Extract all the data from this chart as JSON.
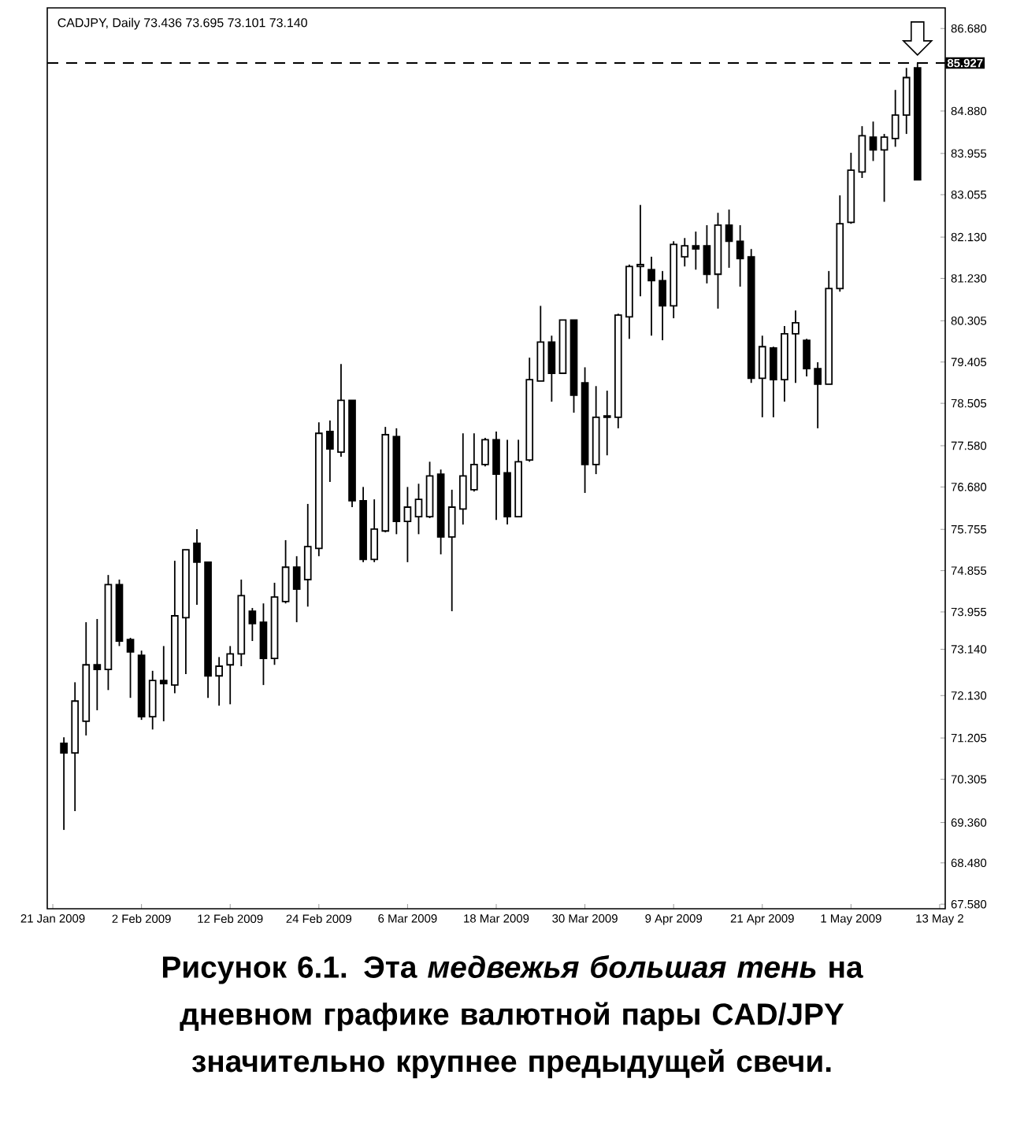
{
  "chart_data": {
    "type": "candlestick",
    "title": "CADJPY, Daily 73.436 73.695 73.101 73.140",
    "annotations": [
      "Рисунок 6.1. Эта *медвежья большая тень* на дневном графике валютной пары CAD/JPY значительно крупнее предыдущей свечи."
    ],
    "categories": [
      "21 Jan 2009",
      null,
      null,
      null,
      null,
      null,
      null,
      null,
      "2 Feb 2009",
      null,
      null,
      null,
      null,
      null,
      null,
      null,
      "12 Feb 2009",
      null,
      null,
      null,
      null,
      null,
      null,
      null,
      "24 Feb 2009",
      null,
      null,
      null,
      null,
      null,
      null,
      null,
      "6 Mar 2009",
      null,
      null,
      null,
      null,
      null,
      null,
      null,
      "18 Mar 2009",
      null,
      null,
      null,
      null,
      null,
      null,
      null,
      "30 Mar 2009",
      null,
      null,
      null,
      null,
      null,
      null,
      null,
      "9 Apr 2009",
      null,
      null,
      null,
      null,
      null,
      null,
      null,
      "21 Apr 2009",
      null,
      null,
      null,
      null,
      null,
      null,
      null,
      "1 May 2009",
      null,
      null,
      null,
      null,
      null,
      null,
      null,
      "13 May 2"
    ],
    "ohlc": [
      null,
      [
        71.09,
        71.22,
        69.2,
        70.88
      ],
      [
        70.88,
        72.42,
        69.61,
        72.01
      ],
      [
        71.57,
        73.73,
        71.26,
        72.8
      ],
      [
        72.8,
        73.8,
        71.81,
        72.7
      ],
      [
        72.7,
        74.76,
        72.25,
        74.55
      ],
      [
        74.55,
        74.66,
        73.21,
        73.32
      ],
      [
        73.35,
        73.39,
        72.08,
        73.08
      ],
      [
        73.01,
        73.11,
        71.6,
        71.67
      ],
      [
        71.67,
        72.67,
        71.39,
        72.46
      ],
      [
        72.46,
        73.21,
        71.57,
        72.39
      ],
      [
        72.36,
        75.07,
        72.18,
        73.87
      ],
      [
        73.83,
        75.31,
        72.6,
        75.31
      ],
      [
        75.45,
        75.76,
        74.11,
        75.04
      ],
      [
        75.04,
        75.04,
        72.08,
        72.56
      ],
      [
        72.56,
        72.97,
        71.91,
        72.77
      ],
      [
        72.8,
        73.21,
        71.94,
        73.04
      ],
      [
        73.04,
        74.66,
        72.77,
        74.31
      ],
      [
        73.97,
        74.04,
        73.32,
        73.7
      ],
      [
        73.73,
        74.14,
        72.36,
        72.94
      ],
      [
        72.94,
        74.59,
        72.8,
        74.28
      ],
      [
        74.18,
        75.52,
        74.14,
        74.93
      ],
      [
        74.93,
        75.17,
        73.73,
        74.45
      ],
      [
        74.66,
        76.31,
        74.07,
        75.38
      ],
      [
        75.34,
        78.09,
        75.17,
        77.85
      ],
      [
        77.89,
        78.13,
        76.79,
        77.51
      ],
      [
        77.44,
        79.36,
        77.34,
        78.57
      ],
      [
        78.57,
        78.57,
        76.24,
        76.38
      ],
      [
        76.38,
        76.68,
        75.04,
        75.1
      ],
      [
        75.1,
        76.41,
        75.04,
        75.76
      ],
      [
        75.72,
        77.99,
        75.69,
        77.82
      ],
      [
        77.78,
        77.96,
        75.65,
        75.93
      ],
      [
        75.93,
        76.68,
        75.04,
        76.24
      ],
      [
        76.03,
        76.75,
        75.65,
        76.41
      ],
      [
        76.03,
        77.23,
        76.0,
        76.92
      ],
      [
        76.96,
        77.06,
        75.21,
        75.59
      ],
      [
        75.59,
        76.62,
        73.97,
        76.24
      ],
      [
        76.2,
        77.85,
        75.86,
        76.92
      ],
      [
        76.62,
        77.85,
        76.58,
        77.17
      ],
      [
        77.17,
        77.75,
        77.13,
        77.71
      ],
      [
        77.71,
        77.89,
        75.96,
        76.96
      ],
      [
        76.99,
        77.71,
        75.86,
        76.03
      ],
      [
        76.03,
        77.71,
        76.03,
        77.23
      ],
      [
        77.27,
        79.5,
        77.23,
        79.02
      ],
      [
        78.99,
        80.63,
        78.99,
        79.84
      ],
      [
        79.84,
        79.98,
        78.54,
        79.16
      ],
      [
        79.16,
        80.32,
        79.16,
        80.32
      ],
      [
        80.32,
        80.32,
        78.3,
        78.68
      ],
      [
        78.95,
        79.29,
        76.55,
        77.17
      ],
      [
        77.17,
        78.88,
        76.96,
        78.2
      ],
      [
        78.2,
        78.78,
        77.37,
        78.23
      ],
      [
        78.2,
        80.46,
        77.96,
        80.43
      ],
      [
        80.39,
        81.53,
        79.91,
        81.49
      ],
      [
        81.49,
        82.83,
        80.84,
        81.53
      ],
      [
        81.42,
        81.7,
        79.98,
        81.18
      ],
      [
        81.18,
        81.39,
        79.88,
        80.63
      ],
      [
        80.63,
        82.04,
        80.36,
        81.97
      ],
      [
        81.7,
        82.11,
        81.49,
        81.94
      ],
      [
        81.94,
        82.25,
        81.42,
        81.87
      ],
      [
        81.94,
        82.39,
        81.12,
        81.32
      ],
      [
        81.32,
        82.66,
        80.57,
        82.39
      ],
      [
        82.39,
        82.73,
        81.46,
        82.04
      ],
      [
        82.04,
        82.39,
        81.05,
        81.66
      ],
      [
        81.7,
        81.87,
        78.95,
        79.05
      ],
      [
        79.05,
        79.98,
        78.2,
        79.74
      ],
      [
        79.71,
        79.74,
        78.2,
        79.02
      ],
      [
        79.02,
        80.19,
        78.54,
        80.02
      ],
      [
        80.02,
        80.53,
        78.95,
        80.26
      ],
      [
        79.88,
        79.91,
        79.09,
        79.26
      ],
      [
        79.26,
        79.4,
        77.96,
        78.92
      ],
      [
        78.92,
        81.39,
        78.92,
        81.01
      ],
      [
        81.01,
        83.04,
        80.94,
        82.42
      ],
      [
        82.45,
        83.97,
        82.42,
        83.59
      ],
      [
        83.55,
        84.55,
        83.42,
        84.34
      ],
      [
        84.31,
        84.65,
        83.79,
        84.03
      ],
      [
        84.03,
        84.38,
        82.9,
        84.31
      ],
      [
        84.28,
        85.34,
        84.1,
        84.79
      ],
      [
        84.79,
        85.82,
        84.38,
        85.61
      ],
      [
        85.82,
        85.93,
        83.38,
        83.38
      ],
      null,
      null
    ],
    "color": "#000000",
    "ylim": [
      67.48,
      87.13
    ],
    "yticks": [
      {
        "value": 86.68,
        "label": "86.680"
      },
      {
        "value": 84.88,
        "label": "84.880"
      },
      {
        "value": 83.955,
        "label": "83.955"
      },
      {
        "value": 83.055,
        "label": "83.055"
      },
      {
        "value": 82.13,
        "label": "82.130"
      },
      {
        "value": 81.23,
        "label": "81.230"
      },
      {
        "value": 80.305,
        "label": "80.305"
      },
      {
        "value": 79.405,
        "label": "79.405"
      },
      {
        "value": 78.505,
        "label": "78.505"
      },
      {
        "value": 77.58,
        "label": "77.580"
      },
      {
        "value": 76.68,
        "label": "76.680"
      },
      {
        "value": 75.755,
        "label": "75.755"
      },
      {
        "value": 74.855,
        "label": "74.855"
      },
      {
        "value": 73.955,
        "label": "73.955"
      },
      {
        "value": 73.14,
        "label": "73.140"
      },
      {
        "value": 72.13,
        "label": "72.130"
      },
      {
        "value": 71.205,
        "label": "71.205"
      },
      {
        "value": 70.305,
        "label": "70.305"
      },
      {
        "value": 69.36,
        "label": "69.360"
      },
      {
        "value": 68.48,
        "label": "68.480"
      },
      {
        "value": 67.58,
        "label": "67.580"
      }
    ],
    "ref_lines": [
      {
        "axis": "y",
        "value": 85.927,
        "label": "85.927",
        "line_style": "dashed"
      }
    ]
  }
}
